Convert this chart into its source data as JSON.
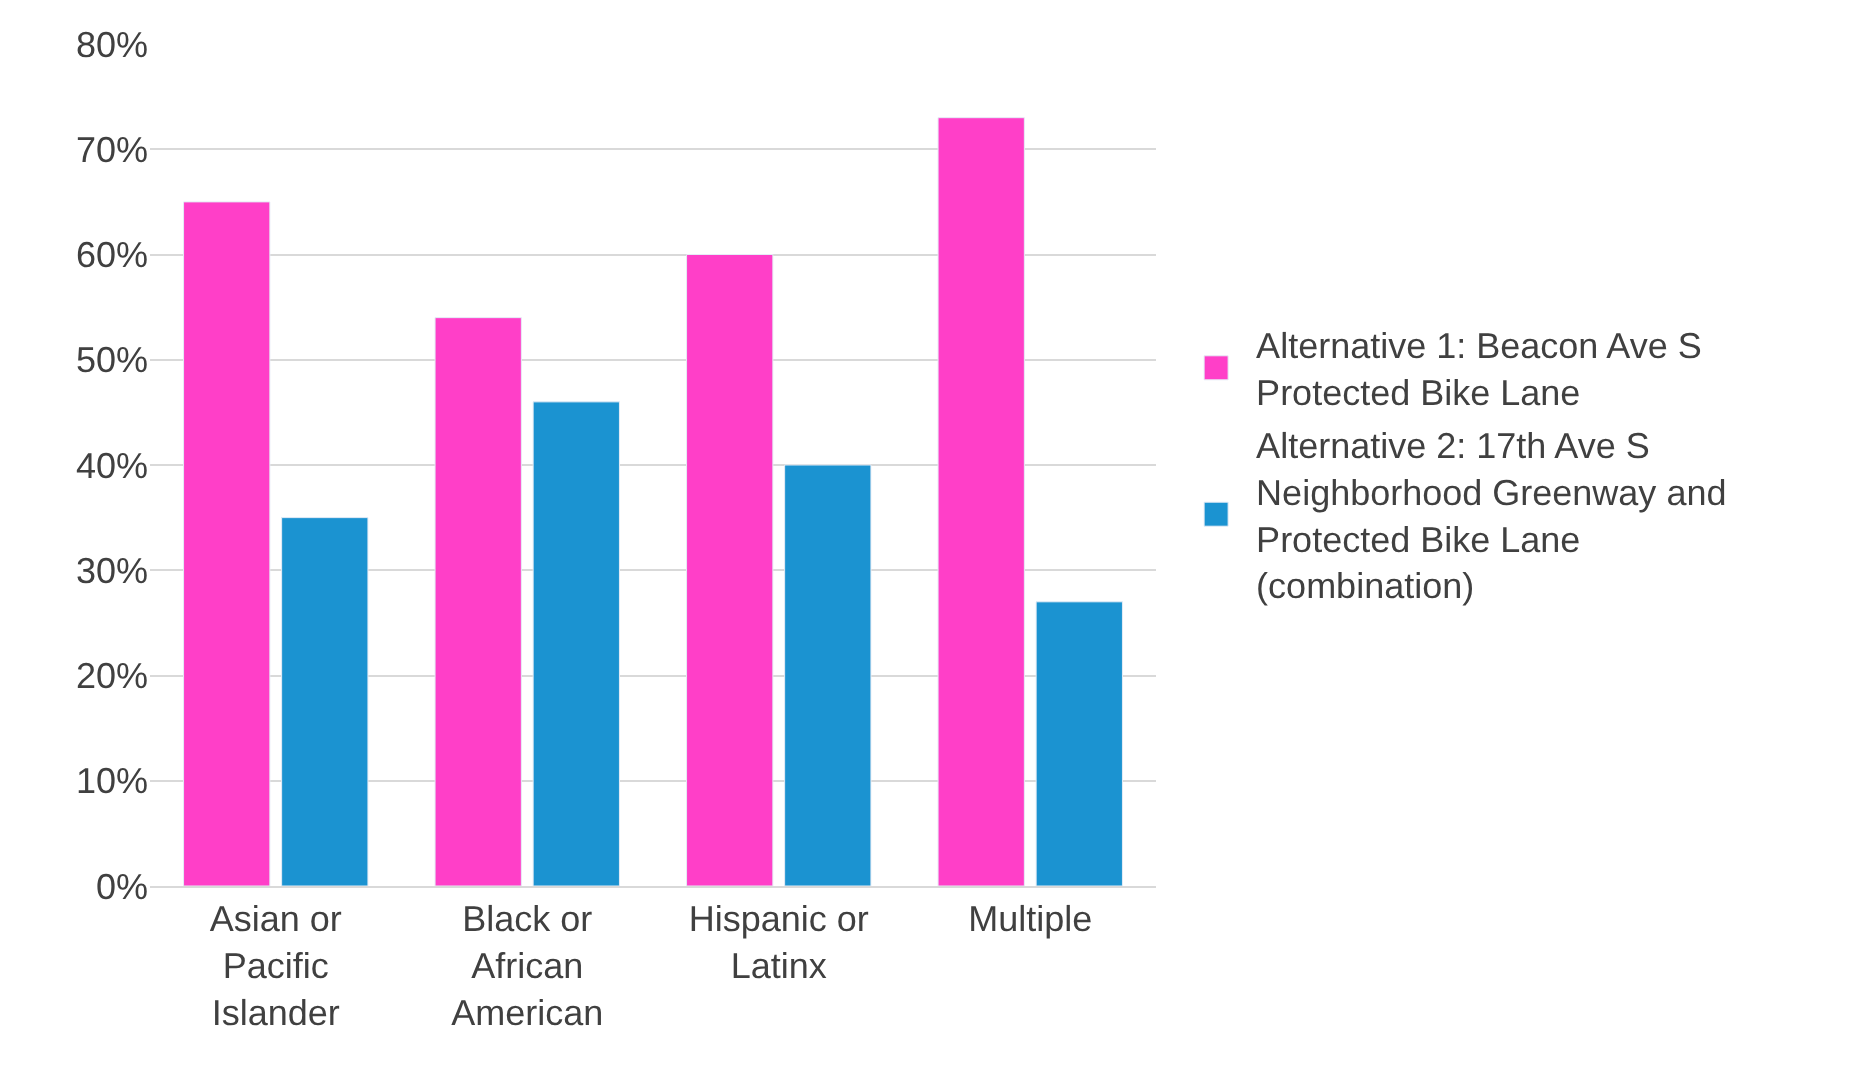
{
  "chart_data": {
    "type": "bar",
    "categories": [
      "Asian or Pacific Islander",
      "Black or African American",
      "Hispanic or Latinx",
      "Multiple"
    ],
    "series": [
      {
        "name": "Alternative 1: Beacon Ave S Protected Bike Lane",
        "color": "#ff3fc8",
        "values": [
          65,
          54,
          60,
          73
        ]
      },
      {
        "name": "Alternative 2: 17th Ave S Neighborhood Greenway and Protected Bike Lane (combination)",
        "color": "#1b93d1",
        "values": [
          35,
          46,
          40,
          27
        ]
      }
    ],
    "ylim": [
      0,
      80
    ],
    "yticks": [
      {
        "value": 0,
        "label": "0%"
      },
      {
        "value": 10,
        "label": "10%"
      },
      {
        "value": 20,
        "label": "20%"
      },
      {
        "value": 30,
        "label": "30%"
      },
      {
        "value": 40,
        "label": "40%"
      },
      {
        "value": 50,
        "label": "50%"
      },
      {
        "value": 60,
        "label": "60%"
      },
      {
        "value": 70,
        "label": "70%"
      },
      {
        "value": 80,
        "label": "80%"
      }
    ],
    "grid": "y",
    "legend": "right"
  }
}
